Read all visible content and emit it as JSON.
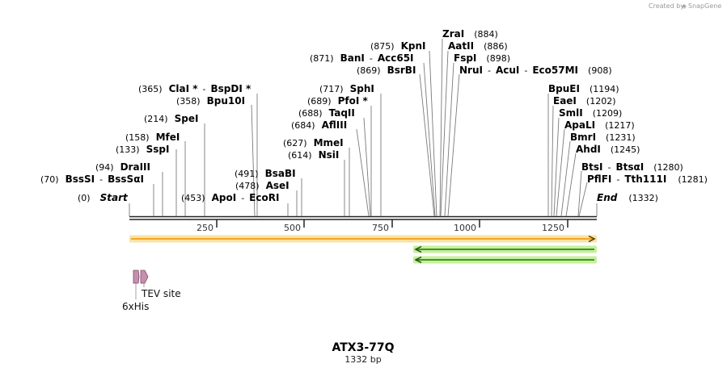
{
  "credit": {
    "created_by": "Created by",
    "brand": "SnapGene"
  },
  "map": {
    "title": "ATX3-77Q",
    "length_label": "1332 bp",
    "length_bp": 1332
  },
  "ruler": {
    "ticks": [
      "250",
      "500",
      "750",
      "1000",
      "1250"
    ]
  },
  "termini": {
    "start": {
      "pos": "(0)",
      "label": "Start"
    },
    "end": {
      "pos": "(1332)",
      "label": "End"
    }
  },
  "sites": [
    {
      "id": "bssSI",
      "pos": "(70)",
      "names": [
        "BssSI",
        "BssSαI"
      ],
      "bp": 70
    },
    {
      "id": "draIII",
      "pos": "(94)",
      "names": [
        "DraIII"
      ],
      "bp": 94
    },
    {
      "id": "sspI",
      "pos": "(133)",
      "names": [
        "SspI"
      ],
      "bp": 133
    },
    {
      "id": "mfeI",
      "pos": "(158)",
      "names": [
        "MfeI"
      ],
      "bp": 158
    },
    {
      "id": "speI",
      "pos": "(214)",
      "names": [
        "SpeI"
      ],
      "bp": 214
    },
    {
      "id": "bpu10I",
      "pos": "(358)",
      "names": [
        "Bpu10I"
      ],
      "bp": 358
    },
    {
      "id": "claI",
      "pos": "(365)",
      "names": [
        "ClaI *",
        "BspDI *"
      ],
      "bp": 365
    },
    {
      "id": "apoI",
      "pos": "(453)",
      "names": [
        "ApoI",
        "EcoRI"
      ],
      "bp": 453
    },
    {
      "id": "aseI",
      "pos": "(478)",
      "names": [
        "AseI"
      ],
      "bp": 478
    },
    {
      "id": "bsaBI",
      "pos": "(491)",
      "names": [
        "BsaBI"
      ],
      "bp": 491
    },
    {
      "id": "nsiI",
      "pos": "(614)",
      "names": [
        "NsiI"
      ],
      "bp": 614
    },
    {
      "id": "mmeI",
      "pos": "(627)",
      "names": [
        "MmeI"
      ],
      "bp": 627
    },
    {
      "id": "aflIII",
      "pos": "(684)",
      "names": [
        "AflIII"
      ],
      "bp": 684
    },
    {
      "id": "taqII",
      "pos": "(688)",
      "names": [
        "TaqII"
      ],
      "bp": 688
    },
    {
      "id": "pfoI",
      "pos": "(689)",
      "names": [
        "PfoI *"
      ],
      "bp": 689
    },
    {
      "id": "sphI",
      "pos": "(717)",
      "names": [
        "SphI"
      ],
      "bp": 717
    },
    {
      "id": "bsrBI",
      "pos": "(869)",
      "names": [
        "BsrBI"
      ],
      "bp": 869
    },
    {
      "id": "banI",
      "pos": "(871)",
      "names": [
        "BanI",
        "Acc65I"
      ],
      "bp": 871
    },
    {
      "id": "kpnI",
      "pos": "(875)",
      "names": [
        "KpnI"
      ],
      "bp": 875
    },
    {
      "id": "zraI",
      "pos": "(884)",
      "names": [
        "ZraI"
      ],
      "bp": 884
    },
    {
      "id": "aatII",
      "pos": "(886)",
      "names": [
        "AatII"
      ],
      "bp": 886
    },
    {
      "id": "fspI",
      "pos": "(898)",
      "names": [
        "FspI"
      ],
      "bp": 898
    },
    {
      "id": "nruI",
      "pos": "(908)",
      "names": [
        "NruI",
        "AcuI",
        "Eco57MI"
      ],
      "bp": 908
    },
    {
      "id": "bpuEI",
      "pos": "(1194)",
      "names": [
        "BpuEI"
      ],
      "bp": 1194
    },
    {
      "id": "eaeI",
      "pos": "(1202)",
      "names": [
        "EaeI"
      ],
      "bp": 1202
    },
    {
      "id": "smlI",
      "pos": "(1209)",
      "names": [
        "SmlI"
      ],
      "bp": 1209
    },
    {
      "id": "apaLI",
      "pos": "(1217)",
      "names": [
        "ApaLI"
      ],
      "bp": 1217
    },
    {
      "id": "bmrI",
      "pos": "(1231)",
      "names": [
        "BmrI"
      ],
      "bp": 1231
    },
    {
      "id": "ahdI",
      "pos": "(1245)",
      "names": [
        "AhdI"
      ],
      "bp": 1245
    },
    {
      "id": "btsI",
      "pos": "(1280)",
      "names": [
        "BtsI",
        "BtsαI"
      ],
      "bp": 1280
    },
    {
      "id": "pflFI",
      "pos": "(1281)",
      "names": [
        "PflFI",
        "Tth111I"
      ],
      "bp": 1281
    }
  ],
  "features": [
    {
      "id": "tev",
      "label": "TEV site"
    },
    {
      "id": "his",
      "label": "6xHis"
    }
  ],
  "colors": {
    "orf_fill": "#f5a623",
    "orf_glow": "#f8e3a6",
    "rev_fill": "#3a9a1e",
    "rev_glow": "#c6ef9e",
    "feature_fill": "#c78fae",
    "feature_stroke": "#7a4a66"
  }
}
